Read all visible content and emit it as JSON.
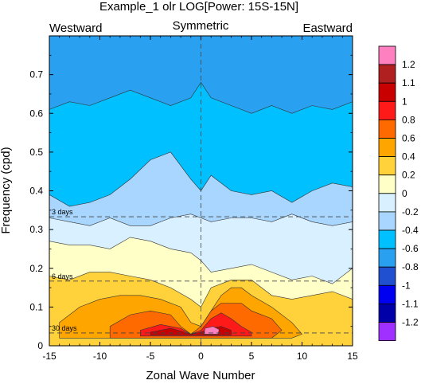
{
  "chart_data": {
    "type": "heatmap",
    "title": "Example_1 olr LOG[Power: 15S-15N]",
    "header": {
      "left": "Westward",
      "center": "Symmetric",
      "right": "Eastward"
    },
    "xlabel": "Zonal Wave Number",
    "ylabel": "Frequency (cpd)",
    "xlim": [
      -15,
      15
    ],
    "ylim": [
      0,
      0.8
    ],
    "xticks": [
      -15,
      -10,
      -5,
      0,
      5,
      10,
      15
    ],
    "yticks": [
      0,
      0.1,
      0.2,
      0.3,
      0.4,
      0.5,
      0.6,
      0.7
    ],
    "xtick_labels": [
      "-15",
      "-10",
      "-5",
      "0",
      "5",
      "10",
      "15"
    ],
    "ytick_labels": [
      "0",
      "0.1",
      "0.2",
      "0.3",
      "0.4",
      "0.5",
      "0.6",
      "0.7"
    ],
    "period_lines": [
      {
        "label": "3 days",
        "frequency": 0.333
      },
      {
        "label": "6 days",
        "frequency": 0.167
      },
      {
        "label": "30 days",
        "frequency": 0.033
      }
    ],
    "colorbar": {
      "labels": [
        "1.2",
        "1.1",
        "1",
        "0.8",
        "0.6",
        "0.4",
        "0.2",
        "0",
        "-0.2",
        "-0.4",
        "-0.6",
        "-0.8",
        "-1",
        "-1.1",
        "-1.2"
      ],
      "colors": [
        "#ff80c0",
        "#b02020",
        "#c80000",
        "#ff1a1a",
        "#ff6a00",
        "#ffa500",
        "#ffd23c",
        "#ffffc8",
        "#d8f0ff",
        "#a8d6ff",
        "#00c0ff",
        "#2aa0f0",
        "#2050d0",
        "#0000f0",
        "#0000a8",
        "#a030ff"
      ]
    },
    "field_levels": [
      {
        "level": "-0.6",
        "color": "#2aa0f0",
        "description": "background at high frequency"
      },
      {
        "level": "-0.4",
        "color": "#00c0ff"
      },
      {
        "level": "-0.2",
        "color": "#a8d6ff"
      },
      {
        "level": "0",
        "color": "#d8f0ff"
      },
      {
        "level": "0.2",
        "color": "#ffffc8"
      },
      {
        "level": "0.4",
        "color": "#ffd23c"
      },
      {
        "level": "0.6",
        "color": "#ffa500"
      },
      {
        "level": "0.8",
        "color": "#ff6a00"
      },
      {
        "level": "1",
        "color": "#ff1a1a"
      },
      {
        "level": "1.1",
        "color": "#c80000"
      },
      {
        "level": "1.2",
        "color": "#ff80c0"
      }
    ],
    "grid": false,
    "dashed_zero_line": true
  }
}
